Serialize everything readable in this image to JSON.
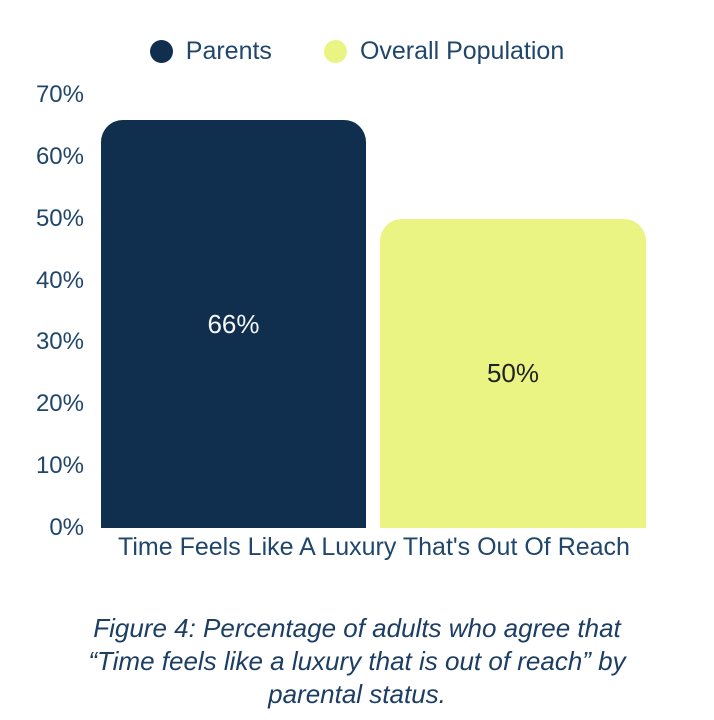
{
  "legend": {
    "items": [
      {
        "label": "Parents",
        "color": "#102e4d"
      },
      {
        "label": "Overall Population",
        "color": "#eaf482"
      }
    ]
  },
  "chart_data": {
    "type": "bar",
    "categories": [
      "Time Feels Like A Luxury That's Out Of Reach"
    ],
    "series": [
      {
        "name": "Parents",
        "values": [
          66
        ],
        "label": "66%",
        "color": "#102e4d",
        "label_color": "#f5f7f8"
      },
      {
        "name": "Overall Population",
        "values": [
          50
        ],
        "label": "50%",
        "color": "#eaf482",
        "label_color": "#1e2222"
      }
    ],
    "ylim": [
      0,
      70
    ],
    "yticks": [
      {
        "value": 70,
        "label": "70%"
      },
      {
        "value": 60,
        "label": "60%"
      },
      {
        "value": 50,
        "label": "50%"
      },
      {
        "value": 40,
        "label": "40%"
      },
      {
        "value": 30,
        "label": "30%"
      },
      {
        "value": 20,
        "label": "20%"
      },
      {
        "value": 10,
        "label": "10%"
      },
      {
        "value": 0,
        "label": "0%"
      }
    ],
    "grid": false,
    "legend_position": "top",
    "xlabel": "Time Feels Like A Luxury That's Out Of Reach",
    "ylabel": "",
    "title": ""
  },
  "caption": {
    "lines": [
      "Figure 4: Percentage of adults who agree that",
      "“Time feels like a luxury that is out of reach” by",
      "parental status."
    ]
  }
}
